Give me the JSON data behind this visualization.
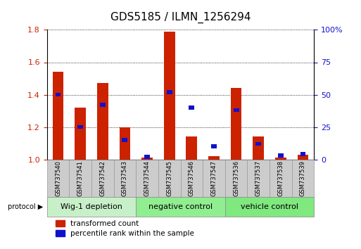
{
  "title": "GDS5185 / ILMN_1256294",
  "samples": [
    "GSM737540",
    "GSM737541",
    "GSM737542",
    "GSM737543",
    "GSM737544",
    "GSM737545",
    "GSM737546",
    "GSM737547",
    "GSM737536",
    "GSM737537",
    "GSM737538",
    "GSM737539"
  ],
  "transformed_count": [
    1.54,
    1.32,
    1.47,
    1.2,
    1.01,
    1.79,
    1.14,
    1.02,
    1.44,
    1.14,
    1.01,
    1.03
  ],
  "percentile_rank": [
    50,
    25,
    42,
    15,
    2,
    52,
    40,
    10,
    38,
    12,
    3,
    4
  ],
  "groups": [
    {
      "label": "Wig-1 depletion",
      "start": 0,
      "end": 4,
      "color": "#c8f0c8"
    },
    {
      "label": "negative control",
      "start": 4,
      "end": 8,
      "color": "#90ee90"
    },
    {
      "label": "vehicle control",
      "start": 8,
      "end": 12,
      "color": "#7fe87f"
    }
  ],
  "ylim_left": [
    1.0,
    1.8
  ],
  "ylim_right": [
    0,
    100
  ],
  "yticks_left": [
    1.0,
    1.2,
    1.4,
    1.6,
    1.8
  ],
  "yticks_right": [
    0,
    25,
    50,
    75,
    100
  ],
  "bar_color_red": "#cc2200",
  "bar_color_blue": "#1111cc",
  "bar_width": 0.5,
  "blue_bar_width": 0.25,
  "legend_red": "transformed count",
  "legend_blue": "percentile rank within the sample",
  "background_color": "#ffffff",
  "tick_label_color_left": "#cc2200",
  "tick_label_color_right": "#1111cc",
  "sample_box_color": "#cccccc",
  "sample_box_edge": "#999999"
}
